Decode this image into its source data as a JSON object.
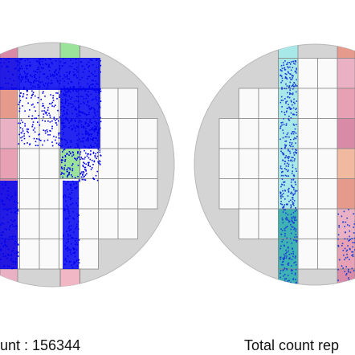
{
  "left_wafer": {
    "caption": "unt : 156344"
  },
  "right_wafer": {
    "caption": "Total count rep"
  }
}
